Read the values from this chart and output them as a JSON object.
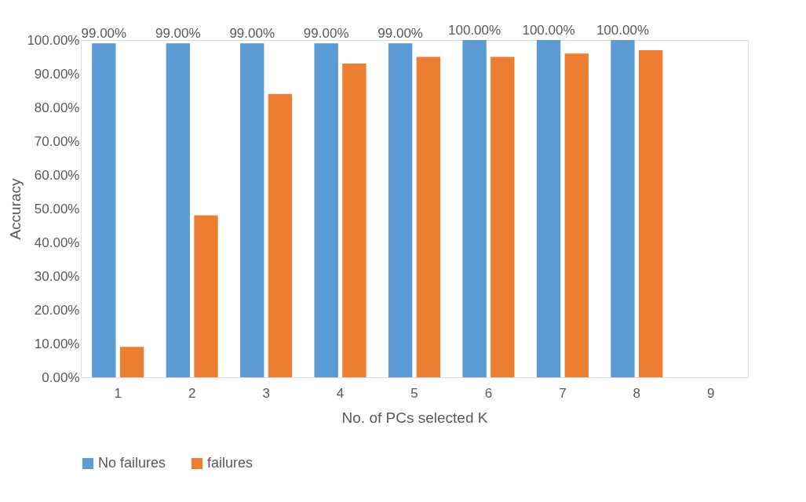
{
  "chart_data": {
    "type": "bar",
    "xlabel": "No. of PCs selected K",
    "ylabel": "Accuracy",
    "categories": [
      "1",
      "2",
      "3",
      "4",
      "5",
      "6",
      "7",
      "8",
      "9"
    ],
    "series": [
      {
        "name": "No failures",
        "color": "#5b9bd5",
        "values": [
          99,
          99,
          99,
          99,
          99,
          100,
          100,
          100,
          null
        ],
        "value_labels": [
          "99.00%",
          "99.00%",
          "99.00%",
          "99.00%",
          "99.00%",
          "100.00%",
          "100.00%",
          "100.00%",
          null
        ]
      },
      {
        "name": "failures",
        "color": "#ed7d31",
        "values": [
          9,
          48,
          84,
          93,
          95,
          95,
          96,
          97,
          null
        ]
      }
    ],
    "ylim": [
      0,
      100
    ],
    "yticks": [
      {
        "value": 0,
        "label": "0.00%"
      },
      {
        "value": 10,
        "label": "10.00%"
      },
      {
        "value": 20,
        "label": "20.00%"
      },
      {
        "value": 30,
        "label": "30.00%"
      },
      {
        "value": 40,
        "label": "40.00%"
      },
      {
        "value": 50,
        "label": "50.00%"
      },
      {
        "value": 60,
        "label": "60.00%"
      },
      {
        "value": 70,
        "label": "70.00%"
      },
      {
        "value": 80,
        "label": "80.00%"
      },
      {
        "value": 90,
        "label": "90.00%"
      },
      {
        "value": 100,
        "label": "100.00%"
      }
    ],
    "grid": false,
    "legend": "bottom"
  }
}
